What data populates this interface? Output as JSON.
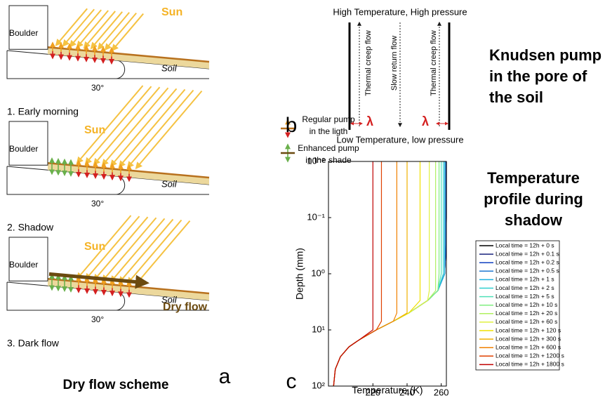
{
  "panel_a": {
    "label": "a",
    "title": "Dry flow scheme",
    "boulder": "Boulder",
    "sun": "Sun",
    "soil": "Soil",
    "angle": "30°",
    "steps": [
      "1. Early morning",
      "2. Shadow",
      "3. Dark flow"
    ],
    "legend": [
      [
        "Regular pump",
        "in the ligth"
      ],
      [
        "Enhanced pump",
        "in the shade"
      ]
    ],
    "dry_flow": "Dry flow"
  },
  "panel_b": {
    "label": "b",
    "top": "High Temperature, High pressure",
    "bottom": "Low Temperature, low pressure",
    "left_flow": "Thermal creep flow",
    "middle_flow": "Slow return flow",
    "right_flow": "Thermal creep flow",
    "lambda": "λ",
    "title": [
      "Knudsen pump",
      "in the pore of",
      "the soil"
    ]
  },
  "chart_data": {
    "type": "line",
    "label": "c",
    "title": [
      "Temperature",
      "profile during",
      "shadow"
    ],
    "xlabel": "Temperature (K)",
    "ylabel": "Depth (mm)",
    "xlim": [
      194,
      263
    ],
    "xticks": [
      220,
      240,
      260
    ],
    "ylim": [
      0.01,
      100
    ],
    "ylog": true,
    "yreverse": true,
    "yticks": [
      {
        "value": 0.01,
        "label": "10⁻²"
      },
      {
        "value": 0.1,
        "label": "10⁻¹"
      },
      {
        "value": 1,
        "label": "10⁰"
      },
      {
        "value": 10,
        "label": "10¹"
      },
      {
        "value": 100,
        "label": "10²"
      }
    ],
    "y": [
      0.01,
      0.03,
      0.1,
      0.3,
      1,
      2,
      3,
      5,
      7,
      10,
      15,
      20,
      30,
      50,
      70,
      100
    ],
    "series": [
      {
        "name": "Local time = 12h + 0 s",
        "color": "#000000",
        "values": [
          263,
          263,
          263,
          262.8,
          262,
          258,
          252,
          241,
          232,
          222,
          212,
          206,
          201,
          198,
          197.5,
          197
        ]
      },
      {
        "name": "Local time = 12h + 0.1 s",
        "color": "#1a237e",
        "values": [
          263,
          263,
          263,
          262.8,
          262,
          258,
          252,
          241,
          232,
          222,
          212,
          206,
          201,
          198,
          197.5,
          197
        ]
      },
      {
        "name": "Local time = 12h + 0.2 s",
        "color": "#1040c0",
        "values": [
          262.9,
          262.9,
          262.9,
          262.8,
          262,
          258,
          252,
          241,
          232,
          222,
          212,
          206,
          201,
          198,
          197.5,
          197
        ]
      },
      {
        "name": "Local time = 12h + 0.5 s",
        "color": "#1f78d0",
        "values": [
          262.5,
          262.5,
          262.5,
          262.5,
          262,
          258,
          252,
          241,
          232,
          222,
          212,
          206,
          201,
          198,
          197.5,
          197
        ]
      },
      {
        "name": "Local time = 12h + 1 s",
        "color": "#1eb0e0",
        "values": [
          262,
          262,
          262,
          262,
          262,
          258,
          252,
          241,
          232,
          222,
          212,
          206,
          201,
          198,
          197.5,
          197
        ]
      },
      {
        "name": "Local time = 12h + 2 s",
        "color": "#30d0d0",
        "values": [
          261.2,
          261.2,
          261.2,
          261.2,
          261.2,
          258,
          252,
          241,
          232,
          222,
          212,
          206,
          201,
          198,
          197.5,
          197
        ]
      },
      {
        "name": "Local time = 12h + 5 s",
        "color": "#50e0b8",
        "values": [
          260,
          260,
          260,
          260,
          260,
          258,
          252,
          241,
          232,
          222,
          212,
          206,
          201,
          198,
          197.5,
          197
        ]
      },
      {
        "name": "Local time = 12h + 10 s",
        "color": "#80ee80",
        "values": [
          258.7,
          258.7,
          258.7,
          258.7,
          258.7,
          258,
          252,
          241,
          232,
          222,
          212,
          206,
          201,
          198,
          197.5,
          197
        ]
      },
      {
        "name": "Local time = 12h + 20 s",
        "color": "#b0f060",
        "values": [
          256.7,
          256.7,
          256.7,
          256.7,
          256.7,
          256.7,
          252,
          241,
          232,
          222,
          212,
          206,
          201,
          198,
          197.5,
          197
        ]
      },
      {
        "name": "Local time = 12h + 60 s",
        "color": "#e0f040",
        "values": [
          253,
          253,
          253,
          253,
          253,
          253,
          252,
          241,
          232,
          222,
          212,
          206,
          201,
          198,
          197.5,
          197
        ]
      },
      {
        "name": "Local time = 12h + 120 s",
        "color": "#f0e000",
        "values": [
          247.6,
          247.6,
          247.6,
          247.6,
          247.6,
          247.6,
          247.6,
          241,
          232,
          222,
          212,
          206,
          201,
          198,
          197.5,
          197
        ]
      },
      {
        "name": "Local time = 12h + 300 s",
        "color": "#f0b000",
        "values": [
          240,
          240,
          240,
          240,
          240,
          240,
          240,
          240,
          232,
          222,
          212,
          206,
          201,
          198,
          197.5,
          197
        ]
      },
      {
        "name": "Local time = 12h + 600 s",
        "color": "#f08000",
        "values": [
          234,
          234,
          234,
          234,
          234,
          234,
          234,
          234,
          232,
          222,
          212,
          206,
          201,
          198,
          197.5,
          197
        ]
      },
      {
        "name": "Local time = 12h + 1200 s",
        "color": "#e04000",
        "values": [
          225,
          225,
          225,
          225,
          225,
          225,
          225,
          225,
          225,
          222,
          212,
          206,
          201,
          198,
          197.5,
          197
        ]
      },
      {
        "name": "Local time = 12h + 1800 s",
        "color": "#c00000",
        "values": [
          220,
          220,
          220,
          220,
          220,
          220,
          220,
          220,
          220,
          220,
          212,
          206,
          201,
          198,
          197.5,
          197
        ]
      }
    ]
  }
}
